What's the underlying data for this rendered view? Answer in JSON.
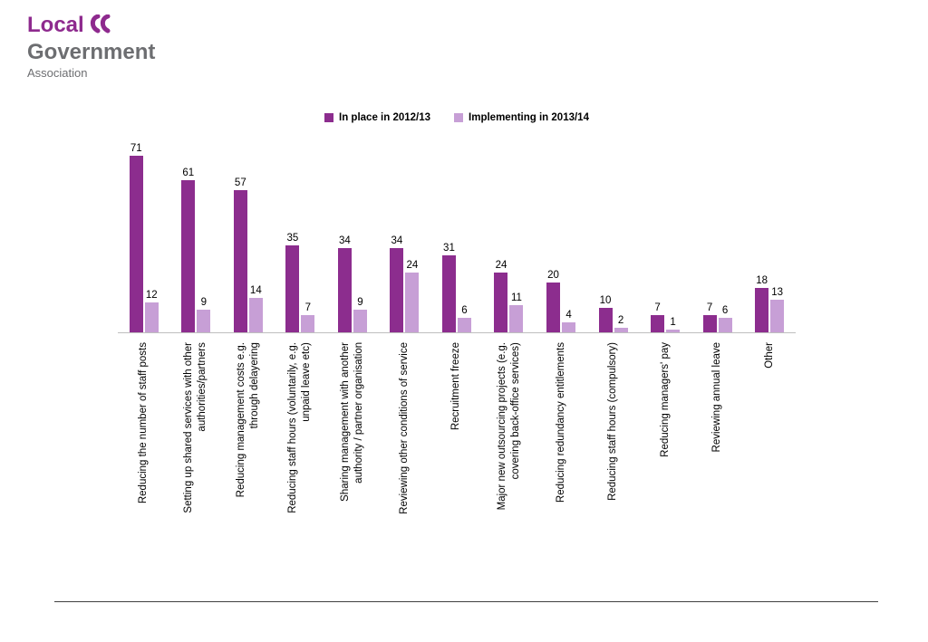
{
  "logo": {
    "line1": "Local",
    "line2": "Government",
    "line3": "Association",
    "purple": "#8e2a8e",
    "gray": "#6d6e71"
  },
  "chart_data": {
    "type": "bar",
    "title": "",
    "xlabel": "",
    "ylabel": "",
    "ylim": [
      0,
      75
    ],
    "grid": false,
    "data_labels": true,
    "legend_position": "top-center",
    "axis_color": "#bfbfbf",
    "categories": [
      "Reducing the number of staff posts",
      "Setting up shared services with other\nauthorities/partners",
      "Reducing management costs e.g.\nthrough delayering",
      "Reducing staff hours (voluntarily, e.g.\nunpaid leave etc)",
      "Sharing management with another\nauthority / partner organisation",
      "Reviewing other conditions of service",
      "Recruitment freeze",
      "Major new outsourcing projects (e.g.\ncovering back-office services)",
      "Reducing redundancy entitlements",
      "Reducing staff hours (compulsory)",
      "Reducing managers' pay",
      "Reviewing annual leave",
      "Other"
    ],
    "series": [
      {
        "name": "In place in 2012/13",
        "color": "#8c2d8e",
        "values": [
          71,
          61,
          57,
          35,
          34,
          34,
          31,
          24,
          20,
          10,
          7,
          7,
          18
        ]
      },
      {
        "name": "Implementing in 2013/14",
        "color": "#c79fd6",
        "values": [
          12,
          9,
          14,
          7,
          9,
          24,
          6,
          11,
          4,
          2,
          1,
          6,
          13
        ]
      }
    ]
  },
  "footer": {
    "divider_color": "#404040"
  }
}
